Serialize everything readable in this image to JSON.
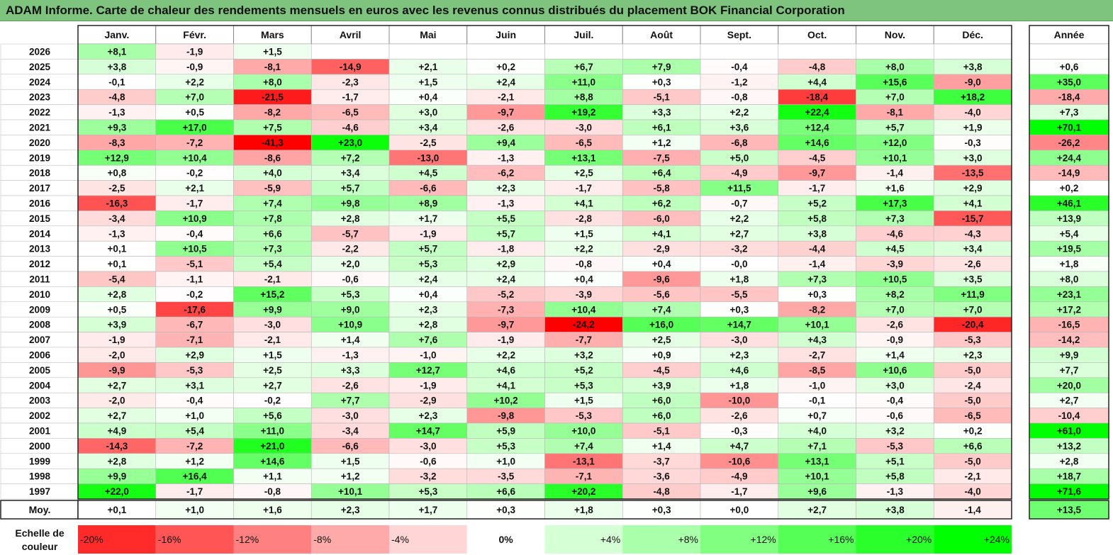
{
  "title": "ADAM Informe. Carte de chaleur des rendements mensuels en euros avec les revenus connus distribués du placement BOK Financial Corporation",
  "chart_data": {
    "type": "heatmap",
    "title": "ADAM Informe. Carte de chaleur des rendements mensuels en euros avec les revenus connus distribués du placement BOK Financial Corporation",
    "columns": [
      "Janv.",
      "Févr.",
      "Mars",
      "Avril",
      "Mai",
      "Juin",
      "Juil.",
      "Août",
      "Sept.",
      "Oct.",
      "Nov.",
      "Déc."
    ],
    "year_header": "Année",
    "rows": [
      {
        "label": "2026",
        "values": [
          "+8,1",
          "-1,9",
          "+1,5",
          "",
          "",
          "",
          "",
          "",
          "",
          "",
          "",
          ""
        ],
        "year": ""
      },
      {
        "label": "2025",
        "values": [
          "+3,8",
          "-0,9",
          "-8,1",
          "-14,9",
          "+2,1",
          "+0,2",
          "+6,7",
          "+7,9",
          "-0,4",
          "-4,8",
          "+8,0",
          "+3,8"
        ],
        "year": "+0,6"
      },
      {
        "label": "2024",
        "values": [
          "-0,1",
          "+2,2",
          "+8,0",
          "-2,3",
          "+1,5",
          "+2,4",
          "+11,0",
          "+0,3",
          "-1,2",
          "+4,4",
          "+15,6",
          "-9,0"
        ],
        "year": "+35,0"
      },
      {
        "label": "2023",
        "values": [
          "-4,8",
          "+7,0",
          "-21,5",
          "-1,7",
          "+0,4",
          "-2,1",
          "+8,8",
          "-5,1",
          "-0,8",
          "-18,4",
          "+7,0",
          "+18,2"
        ],
        "year": "-18,4"
      },
      {
        "label": "2022",
        "values": [
          "-1,3",
          "+0,5",
          "-8,2",
          "-6,5",
          "+3,0",
          "-9,7",
          "+19,2",
          "+3,3",
          "+2,2",
          "+22,4",
          "-8,1",
          "-4,0"
        ],
        "year": "+7,3"
      },
      {
        "label": "2021",
        "values": [
          "+9,3",
          "+17,0",
          "+7,5",
          "-4,6",
          "+3,4",
          "-2,6",
          "-3,0",
          "+6,1",
          "+3,6",
          "+12,4",
          "+5,7",
          "+1,9"
        ],
        "year": "+70,1"
      },
      {
        "label": "2020",
        "values": [
          "-8,3",
          "-7,2",
          "-41,3",
          "+23,0",
          "-2,5",
          "+9,4",
          "-6,5",
          "+1,2",
          "-6,8",
          "+14,6",
          "+12,0",
          "-0,3"
        ],
        "year": "-26,2"
      },
      {
        "label": "2019",
        "values": [
          "+12,9",
          "+10,4",
          "-8,6",
          "+7,2",
          "-13,0",
          "-1,3",
          "+13,1",
          "-7,5",
          "+5,0",
          "-4,5",
          "+10,1",
          "+3,0"
        ],
        "year": "+24,4"
      },
      {
        "label": "2018",
        "values": [
          "+0,8",
          "-0,2",
          "+4,0",
          "+3,4",
          "+4,5",
          "-6,2",
          "+2,5",
          "+6,4",
          "-4,9",
          "-9,7",
          "-1,4",
          "-13,5"
        ],
        "year": "-14,9"
      },
      {
        "label": "2017",
        "values": [
          "-2,5",
          "+2,1",
          "-5,9",
          "+5,7",
          "-6,6",
          "+2,3",
          "-1,7",
          "-5,8",
          "+11,5",
          "-1,7",
          "+1,6",
          "+2,9"
        ],
        "year": "+0,2"
      },
      {
        "label": "2016",
        "values": [
          "-16,3",
          "-1,7",
          "+7,4",
          "+9,8",
          "+8,9",
          "-1,3",
          "+4,1",
          "+6,2",
          "-0,7",
          "+5,2",
          "+17,3",
          "+4,1"
        ],
        "year": "+46,1"
      },
      {
        "label": "2015",
        "values": [
          "-3,4",
          "+10,9",
          "+7,8",
          "+2,8",
          "+1,7",
          "+5,5",
          "-2,8",
          "-6,0",
          "+2,2",
          "+5,8",
          "+7,3",
          "-15,7"
        ],
        "year": "+13,9"
      },
      {
        "label": "2014",
        "values": [
          "-1,3",
          "-0,4",
          "+6,6",
          "-5,7",
          "-1,9",
          "+5,7",
          "+1,5",
          "+4,1",
          "+2,7",
          "+3,8",
          "-4,6",
          "-4,3"
        ],
        "year": "+5,4"
      },
      {
        "label": "2013",
        "values": [
          "+0,1",
          "+10,5",
          "+7,3",
          "-2,2",
          "+5,7",
          "-1,8",
          "+2,2",
          "-2,9",
          "-3,2",
          "-4,4",
          "+4,5",
          "+3,4"
        ],
        "year": "+19,5"
      },
      {
        "label": "2012",
        "values": [
          "+0,1",
          "-5,1",
          "+5,4",
          "+2,0",
          "+5,3",
          "+2,9",
          "-0,8",
          "+0,4",
          "-0,0",
          "-1,4",
          "-3,9",
          "-2,6"
        ],
        "year": "+1,8"
      },
      {
        "label": "2011",
        "values": [
          "-5,4",
          "-1,1",
          "-2,1",
          "-0,6",
          "+2,4",
          "+2,4",
          "+0,4",
          "-9,6",
          "+1,8",
          "+7,3",
          "+10,5",
          "+3,5"
        ],
        "year": "+8,0"
      },
      {
        "label": "2010",
        "values": [
          "+2,8",
          "-0,2",
          "+15,2",
          "+5,3",
          "+0,4",
          "-5,2",
          "-3,9",
          "-5,6",
          "-5,5",
          "+0,3",
          "+8,2",
          "+11,9"
        ],
        "year": "+23,1"
      },
      {
        "label": "2009",
        "values": [
          "+0,5",
          "-17,6",
          "+9,9",
          "+9,0",
          "+2,3",
          "-7,3",
          "+10,4",
          "+7,4",
          "+0,3",
          "-8,2",
          "+7,0",
          "+7,0"
        ],
        "year": "+17,2"
      },
      {
        "label": "2008",
        "values": [
          "+3,9",
          "-6,7",
          "-3,0",
          "+10,9",
          "+2,8",
          "-9,7",
          "-24,2",
          "+16,0",
          "+14,7",
          "+10,1",
          "-2,6",
          "-20,4"
        ],
        "year": "-16,5"
      },
      {
        "label": "2007",
        "values": [
          "-1,9",
          "-7,1",
          "-2,1",
          "+1,4",
          "+7,6",
          "-1,9",
          "-7,7",
          "+2,5",
          "-3,0",
          "+4,3",
          "-0,9",
          "-5,3"
        ],
        "year": "-14,2"
      },
      {
        "label": "2006",
        "values": [
          "-2,0",
          "+2,9",
          "+1,5",
          "-1,3",
          "-1,0",
          "+2,2",
          "+3,2",
          "+0,9",
          "+2,3",
          "-2,7",
          "+1,4",
          "+2,3"
        ],
        "year": "+9,9"
      },
      {
        "label": "2005",
        "values": [
          "-9,9",
          "-5,3",
          "+2,5",
          "+3,3",
          "+12,7",
          "+4,6",
          "+5,2",
          "-4,5",
          "+4,6",
          "-8,5",
          "+10,6",
          "-5,0"
        ],
        "year": "+7,7"
      },
      {
        "label": "2004",
        "values": [
          "+2,7",
          "+3,1",
          "+2,7",
          "-2,6",
          "-1,9",
          "+4,1",
          "+5,3",
          "+3,9",
          "+1,8",
          "-1,0",
          "+3,0",
          "-2,4"
        ],
        "year": "+20,0"
      },
      {
        "label": "2003",
        "values": [
          "-2,0",
          "-0,4",
          "-0,2",
          "+7,7",
          "-2,9",
          "+10,2",
          "+1,5",
          "+6,0",
          "-10,0",
          "-0,1",
          "-0,4",
          "-5,0"
        ],
        "year": "+2,7"
      },
      {
        "label": "2002",
        "values": [
          "+2,7",
          "+1,0",
          "+5,6",
          "-3,0",
          "+2,3",
          "-9,8",
          "-5,3",
          "+6,0",
          "-2,6",
          "+0,7",
          "-0,6",
          "-6,5"
        ],
        "year": "-10,4"
      },
      {
        "label": "2001",
        "values": [
          "+4,9",
          "+5,4",
          "+11,0",
          "-3,4",
          "+14,7",
          "+5,9",
          "+10,0",
          "-5,1",
          "-0,3",
          "+4,0",
          "+3,2",
          "+0,2"
        ],
        "year": "+61,0"
      },
      {
        "label": "2000",
        "values": [
          "-14,3",
          "-7,2",
          "+21,0",
          "-6,6",
          "-3,0",
          "+5,3",
          "+7,4",
          "+1,4",
          "+4,7",
          "+7,1",
          "-5,3",
          "+6,6"
        ],
        "year": "+13,2"
      },
      {
        "label": "1999",
        "values": [
          "+2,8",
          "+1,2",
          "+14,6",
          "+1,5",
          "-0,6",
          "+1,0",
          "-13,1",
          "-3,7",
          "-10,6",
          "+13,1",
          "+5,1",
          "-5,0"
        ],
        "year": "+2,8"
      },
      {
        "label": "1998",
        "values": [
          "+9,9",
          "+16,4",
          "+1,1",
          "+1,2",
          "-3,2",
          "-3,5",
          "-7,1",
          "-3,6",
          "-4,9",
          "+10,1",
          "+5,8",
          "-2,1"
        ],
        "year": "+18,7"
      },
      {
        "label": "1997",
        "values": [
          "+22,0",
          "-1,7",
          "-0,8",
          "+10,1",
          "+5,3",
          "+6,6",
          "+20,2",
          "-4,8",
          "-1,7",
          "+9,6",
          "-1,3",
          "-4,0"
        ],
        "year": "+71,6"
      }
    ],
    "average": {
      "label": "Moy.",
      "values": [
        "+0,1",
        "+1,0",
        "+1,6",
        "+2,3",
        "+1,7",
        "+0,3",
        "+1,8",
        "+0,3",
        "+0,0",
        "+2,7",
        "+3,8",
        "-1,4"
      ],
      "year": "+13,5"
    },
    "scale": {
      "label_line1": "Echelle de",
      "label_line2": "couleur",
      "ticks": [
        "-20%",
        "-16%",
        "-12%",
        "-8%",
        "-4%",
        "0%",
        "+4%",
        "+8%",
        "+12%",
        "+16%",
        "+20%",
        "+24%"
      ],
      "values": [
        -20,
        -16,
        -12,
        -8,
        -4,
        0,
        4,
        8,
        12,
        16,
        20,
        24
      ]
    },
    "colors": {
      "negative": "#ff0000",
      "neutral": "#ffffff",
      "positive": "#00ff00",
      "title_bg": "#7ec47e"
    }
  }
}
